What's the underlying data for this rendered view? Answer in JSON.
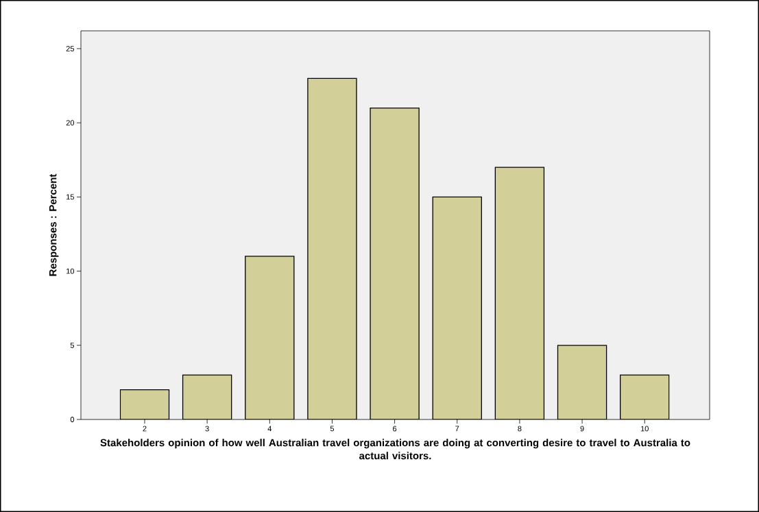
{
  "chart_data": {
    "type": "bar",
    "categories": [
      "2",
      "3",
      "4",
      "5",
      "6",
      "7",
      "8",
      "9",
      "10"
    ],
    "values": [
      2,
      3,
      11,
      23,
      21,
      15,
      17,
      5,
      3
    ],
    "color": "#d3cf98",
    "xlabel": "Stakeholders opinion of how well Australian travel organizations are doing at converting desire to travel to Australia to actual visitors.",
    "ylabel": "Responses : Percent",
    "ylim": [
      0,
      26.2
    ],
    "yticks": [
      0,
      5,
      10,
      15,
      20,
      25
    ],
    "grid": false
  }
}
